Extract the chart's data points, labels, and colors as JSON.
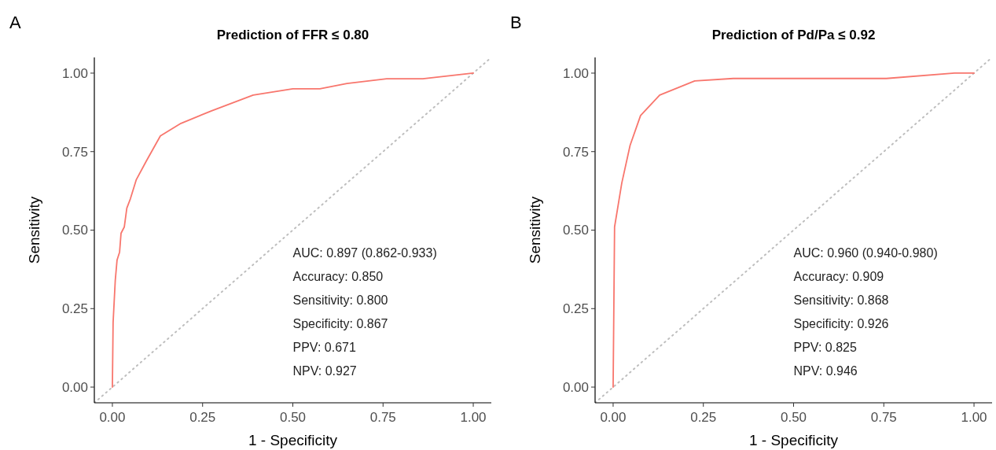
{
  "chart_data": [
    {
      "type": "line",
      "title": "Prediction of FFR ≤ 0.80",
      "xlabel": "1 - Specificity",
      "ylabel": "Sensitivity",
      "xlim": [
        -0.05,
        1.05
      ],
      "ylim": [
        -0.05,
        1.05
      ],
      "xticks": [
        {
          "value": 0,
          "label": "0.00"
        },
        {
          "value": 0.25,
          "label": "0.25"
        },
        {
          "value": 0.5,
          "label": "0.50"
        },
        {
          "value": 0.75,
          "label": "0.75"
        },
        {
          "value": 1,
          "label": "1.00"
        }
      ],
      "yticks": [
        {
          "value": 0,
          "label": "0.00"
        },
        {
          "value": 0.25,
          "label": "0.25"
        },
        {
          "value": 0.5,
          "label": "0.50"
        },
        {
          "value": 0.75,
          "label": "0.75"
        },
        {
          "value": 1,
          "label": "1.00"
        }
      ],
      "series": [
        {
          "color": "#f8766d",
          "x": [
            0,
            0.002,
            0.008,
            0.013,
            0.02,
            0.024,
            0.033,
            0.04,
            0.05,
            0.066,
            0.094,
            0.133,
            0.19,
            0.275,
            0.39,
            0.5,
            0.575,
            0.65,
            0.76,
            0.86,
            1
          ],
          "values": [
            0,
            0.205,
            0.34,
            0.405,
            0.43,
            0.49,
            0.51,
            0.57,
            0.6,
            0.66,
            0.72,
            0.8,
            0.84,
            0.88,
            0.93,
            0.95,
            0.95,
            0.967,
            0.982,
            0.982,
            1
          ],
          "line_style": "solid"
        },
        {
          "color": "#bebebe",
          "x": [
            -0.05,
            1.05
          ],
          "values": [
            -0.05,
            1.05
          ],
          "line_style": "dotted"
        }
      ],
      "annotations": [
        "A",
        "AUC: 0.897 (0.862-0.933)",
        "Accuracy: 0.850",
        "Sensitivity: 0.800",
        "Specificity: 0.867",
        "PPV: 0.671",
        "NPV: 0.927"
      ]
    },
    {
      "type": "line",
      "title": "Prediction of Pd/Pa ≤ 0.92",
      "xlabel": "1 - Specificity",
      "ylabel": "Sensitivity",
      "xlim": [
        -0.05,
        1.05
      ],
      "ylim": [
        -0.05,
        1.05
      ],
      "xticks": [
        {
          "value": 0,
          "label": "0.00"
        },
        {
          "value": 0.25,
          "label": "0.25"
        },
        {
          "value": 0.5,
          "label": "0.50"
        },
        {
          "value": 0.75,
          "label": "0.75"
        },
        {
          "value": 1,
          "label": "1.00"
        }
      ],
      "yticks": [
        {
          "value": 0,
          "label": "0.00"
        },
        {
          "value": 0.25,
          "label": "0.25"
        },
        {
          "value": 0.5,
          "label": "0.50"
        },
        {
          "value": 0.75,
          "label": "0.75"
        },
        {
          "value": 1,
          "label": "1.00"
        }
      ],
      "series": [
        {
          "color": "#f8766d",
          "x": [
            0,
            0.004,
            0.024,
            0.047,
            0.076,
            0.129,
            0.226,
            0.333,
            0.757,
            0.946,
            1
          ],
          "values": [
            0,
            0.51,
            0.65,
            0.77,
            0.865,
            0.93,
            0.975,
            0.983,
            0.983,
            1,
            1
          ],
          "line_style": "solid"
        },
        {
          "color": "#bebebe",
          "x": [
            -0.05,
            1.05
          ],
          "values": [
            -0.05,
            1.05
          ],
          "line_style": "dotted"
        }
      ],
      "annotations": [
        "B",
        "AUC: 0.960 (0.940-0.980)",
        "Accuracy: 0.909",
        "Sensitivity: 0.868",
        "Specificity: 0.926",
        "PPV: 0.825",
        "NPV: 0.946"
      ]
    }
  ]
}
